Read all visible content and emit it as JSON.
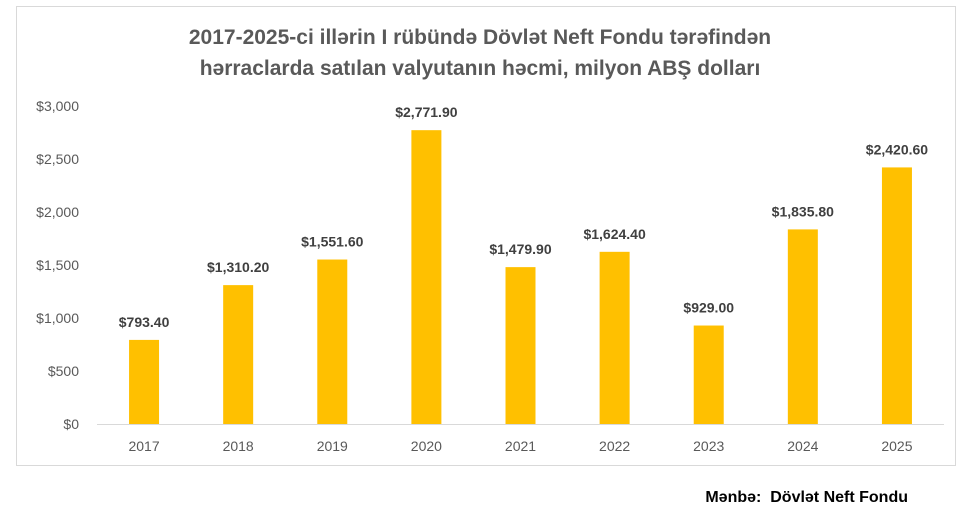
{
  "chart_data": {
    "type": "bar",
    "title": [
      "2017-2025-ci illərin I rübündə Dövlət Neft Fondu tərəfindən",
      "hərraclarda satılan valyutanın həcmi, milyon ABŞ dolları"
    ],
    "categories": [
      "2017",
      "2018",
      "2019",
      "2020",
      "2021",
      "2022",
      "2023",
      "2024",
      "2025"
    ],
    "values": [
      793.4,
      1310.2,
      1551.6,
      2771.9,
      1479.9,
      1624.4,
      929.0,
      1835.8,
      2420.6
    ],
    "data_labels": [
      "$793.40",
      "$1,310.20",
      "$1,551.60",
      "$2,771.90",
      "$1,479.90",
      "$1,624.40",
      "$929.00",
      "$1,835.80",
      "$2,420.60"
    ],
    "y_ticks": [
      0,
      500,
      1000,
      1500,
      2000,
      2500,
      3000
    ],
    "y_tick_labels": [
      "$0",
      "$500",
      "$1,000",
      "$1,500",
      "$2,000",
      "$2,500",
      "$3,000"
    ],
    "ylim": [
      0,
      3000
    ],
    "grid": false,
    "legend": "none",
    "bar_color": "#FFC000",
    "axis_color": "#d9d9d9"
  },
  "source": "Mənbə:  Dövlət Neft Fondu"
}
